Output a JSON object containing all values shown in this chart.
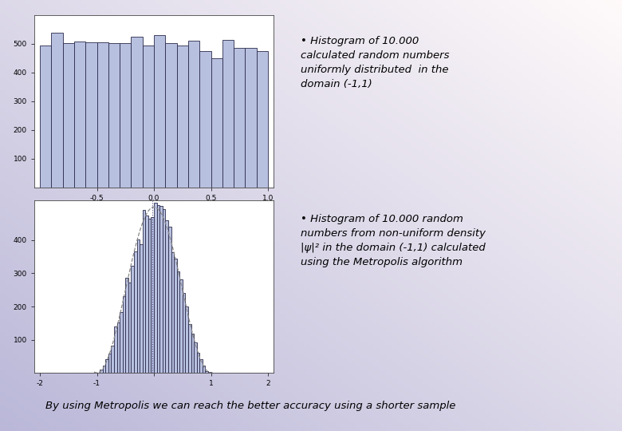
{
  "fig_width": 7.8,
  "fig_height": 5.4,
  "dpi": 100,
  "hist1_seed": 42,
  "hist1_n": 10000,
  "hist1_bins": 20,
  "hist1_xlim": [
    -1.05,
    1.05
  ],
  "hist1_ylim": [
    0,
    600
  ],
  "hist1_yticks": [
    100,
    200,
    300,
    400,
    500
  ],
  "hist1_xticks": [
    -0.5,
    0.0,
    0.5,
    1.0
  ],
  "hist1_xticklabels": [
    "-0.5",
    "0.0",
    "0.5",
    "1.0"
  ],
  "hist1_bar_color": "#b8c0e0",
  "hist1_edge_color": "#2a2a4a",
  "hist2_seed": 123,
  "hist2_n": 10000,
  "hist2_bins": 40,
  "hist2_xlim": [
    -2.1,
    2.1
  ],
  "hist2_ylim": [
    0,
    520
  ],
  "hist2_yticks": [
    100,
    200,
    300,
    400
  ],
  "hist2_xticks": [
    -2,
    -1,
    0,
    1,
    2
  ],
  "hist2_xticklabels": [
    "-2",
    "-1",
    "",
    "1",
    "2"
  ],
  "hist2_bar_color": "#b8c0e0",
  "hist2_edge_color": "#2a2a4a",
  "text1": "• Histogram of 10.000\ncalculated random numbers\nuniformly distributed  in the\ndomain (-1,1)",
  "text2": "• Histogram of 10.000 random\nnumbers from non-uniform density\n|ψ|² in the domain (-1,1) calculated\nusing the Metropolis algorithm",
  "bottom_text": "By using Metropolis we can reach the better accuracy using a shorter sample",
  "plot_bg": "#ffffff",
  "text_box_bg": "#f0f0f8",
  "bottom_box_bg": "#eef0f8",
  "bg_left_color": "#b8b4d0",
  "bg_right_color": "#e8e6f4",
  "font_size_text": 9.5,
  "font_size_bottom": 9.5,
  "font_size_tick": 6.5
}
